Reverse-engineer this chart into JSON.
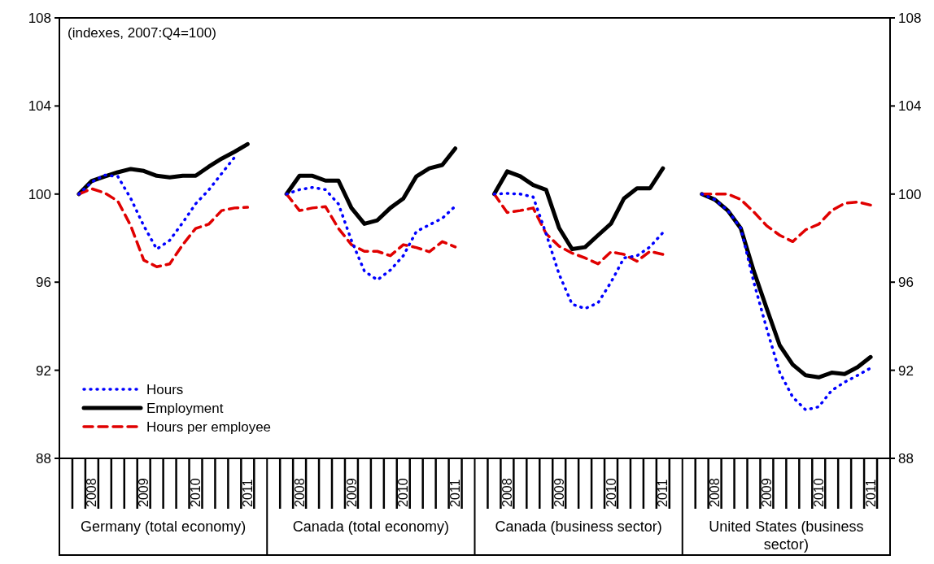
{
  "chart_data": {
    "type": "line",
    "categories": [
      null,
      null,
      "2008",
      null,
      null,
      null,
      "2009",
      null,
      null,
      null,
      "2010",
      null,
      null,
      null,
      "2011",
      null,
      null,
      null,
      "2008",
      null,
      null,
      null,
      "2009",
      null,
      null,
      null,
      "2010",
      null,
      null,
      null,
      "2011",
      null,
      null,
      null,
      "2008",
      null,
      null,
      null,
      "2009",
      null,
      null,
      null,
      "2010",
      null,
      null,
      null,
      "2011",
      null,
      null,
      null,
      "2008",
      null,
      null,
      null,
      "2009",
      null,
      null,
      null,
      "2010",
      null,
      null,
      null,
      "2011",
      null
    ],
    "series": [
      {
        "name": "Hours",
        "color": "#0000ff",
        "line_style": "dotted",
        "values": [
          null,
          100,
          100.55,
          100.86,
          100.8,
          99.8,
          98.56,
          97.5,
          97.9,
          98.7,
          99.56,
          100.18,
          100.93,
          101.67,
          null,
          null,
          null,
          100,
          100.2,
          100.3,
          100.2,
          99.55,
          97.9,
          96.5,
          96.1,
          96.55,
          97.2,
          98.3,
          98.6,
          98.9,
          99.45,
          null,
          null,
          100,
          100.03,
          100,
          99.87,
          98.2,
          96.36,
          95,
          94.8,
          95.06,
          96,
          97.1,
          97.2,
          97.6,
          98.25,
          null,
          null,
          100,
          99.75,
          99.25,
          98.45,
          96,
          93.88,
          91.9,
          90.78,
          90.2,
          90.34,
          91.08,
          91.46,
          91.77,
          92.1,
          null
        ]
      },
      {
        "name": "Employment",
        "color": "#000000",
        "line_style": "solid",
        "values": [
          null,
          100,
          100.6,
          100.8,
          100.99,
          101.14,
          101.05,
          100.83,
          100.76,
          100.83,
          100.83,
          101.24,
          101.61,
          101.92,
          102.27,
          null,
          null,
          100,
          100.83,
          100.83,
          100.61,
          100.61,
          99.37,
          98.65,
          98.81,
          99.37,
          99.8,
          100.8,
          101.17,
          101.32,
          102.07,
          null,
          null,
          100,
          101.03,
          100.81,
          100.41,
          100.19,
          98.46,
          97.5,
          97.59,
          98.13,
          98.66,
          99.8,
          100.26,
          100.26,
          101.17,
          null,
          null,
          100,
          99.75,
          99.25,
          98.44,
          96.5,
          94.8,
          93.13,
          92.26,
          91.77,
          91.68,
          91.89,
          91.83,
          92.14,
          92.6,
          null
        ]
      },
      {
        "name": "Hours per employee",
        "color": "#e00000",
        "line_style": "dashed",
        "values": [
          null,
          100,
          100.24,
          100.05,
          99.68,
          98.56,
          97,
          96.7,
          96.83,
          97.7,
          98.44,
          98.63,
          99.25,
          99.37,
          99.4,
          null,
          null,
          100,
          99.25,
          99.37,
          99.43,
          98.44,
          97.7,
          97.4,
          97.4,
          97.2,
          97.7,
          97.57,
          97.38,
          97.84,
          97.6,
          null,
          null,
          100,
          99.16,
          99.25,
          99.37,
          98.2,
          97.63,
          97.32,
          97.1,
          96.83,
          97.38,
          97.26,
          96.95,
          97.4,
          97.26,
          null,
          null,
          100,
          100,
          100,
          99.75,
          99.19,
          98.56,
          98.13,
          97.84,
          98.38,
          98.63,
          99.25,
          99.58,
          99.64,
          99.5,
          null
        ]
      }
    ],
    "ylim": [
      88,
      108
    ],
    "yticks": [
      88,
      92,
      96,
      100,
      104,
      108
    ],
    "y2lim": [
      88,
      108
    ],
    "y2ticks": [
      88,
      92,
      96,
      100,
      104,
      108
    ],
    "grid": false,
    "legend": "bottom left",
    "annotations": [
      "(indexes, 2007:Q4=100)",
      "Germany (total economy)",
      "Canada (total economy)",
      "Canada (business sector)",
      "United States (business sector)"
    ]
  }
}
